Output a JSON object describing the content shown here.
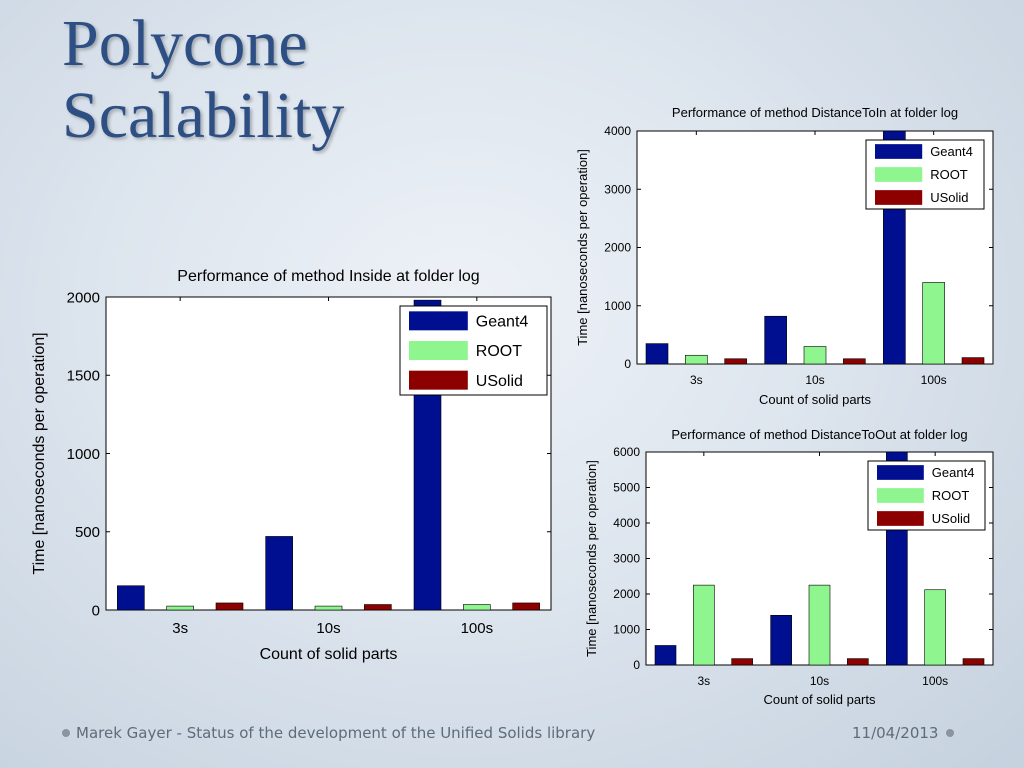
{
  "slide": {
    "title_lines": [
      "Polycone",
      "Scalability"
    ],
    "footer_author": "Marek Gayer - Status of the development of the Unified Solids library",
    "footer_date": "11/04/2013"
  },
  "colors": {
    "Geant4": "#000f8f",
    "ROOT": "#8ff58f",
    "USolid": "#8c0000"
  },
  "chart_data": [
    {
      "type": "bar",
      "title": "Performance of method Inside at folder log",
      "xlabel": "Count of solid parts",
      "ylabel": "Time [nanoseconds per operation]",
      "categories": [
        "3s",
        "10s",
        "100s"
      ],
      "series": [
        {
          "name": "Geant4",
          "values": [
            155,
            470,
            1980
          ]
        },
        {
          "name": "ROOT",
          "values": [
            25,
            25,
            35
          ]
        },
        {
          "name": "USolid",
          "values": [
            45,
            35,
            45
          ]
        }
      ],
      "ylim": [
        0,
        2000
      ],
      "yticks": [
        0,
        500,
        1000,
        1500,
        2000
      ],
      "legend": "top-right"
    },
    {
      "type": "bar",
      "title": "Performance of method DistanceToIn at folder log",
      "xlabel": "Count of solid parts",
      "ylabel": "Time [nanoseconds per operation]",
      "categories": [
        "3s",
        "10s",
        "100s"
      ],
      "series": [
        {
          "name": "Geant4",
          "values": [
            350,
            820,
            4000
          ]
        },
        {
          "name": "ROOT",
          "values": [
            150,
            300,
            1400
          ]
        },
        {
          "name": "USolid",
          "values": [
            90,
            90,
            110
          ]
        }
      ],
      "ylim": [
        0,
        4000
      ],
      "yticks": [
        0,
        1000,
        2000,
        3000,
        4000
      ],
      "legend": "top-right"
    },
    {
      "type": "bar",
      "title": "Performance of method DistanceToOut at folder log",
      "xlabel": "Count of solid parts",
      "ylabel": "Time [nanoseconds per operation]",
      "categories": [
        "3s",
        "10s",
        "100s"
      ],
      "series": [
        {
          "name": "Geant4",
          "values": [
            550,
            1400,
            6000
          ]
        },
        {
          "name": "ROOT",
          "values": [
            2250,
            2250,
            2120
          ]
        },
        {
          "name": "USolid",
          "values": [
            180,
            180,
            180
          ]
        }
      ],
      "ylim": [
        0,
        6000
      ],
      "yticks": [
        0,
        1000,
        2000,
        3000,
        4000,
        5000,
        6000
      ],
      "legend": "top-right"
    }
  ]
}
